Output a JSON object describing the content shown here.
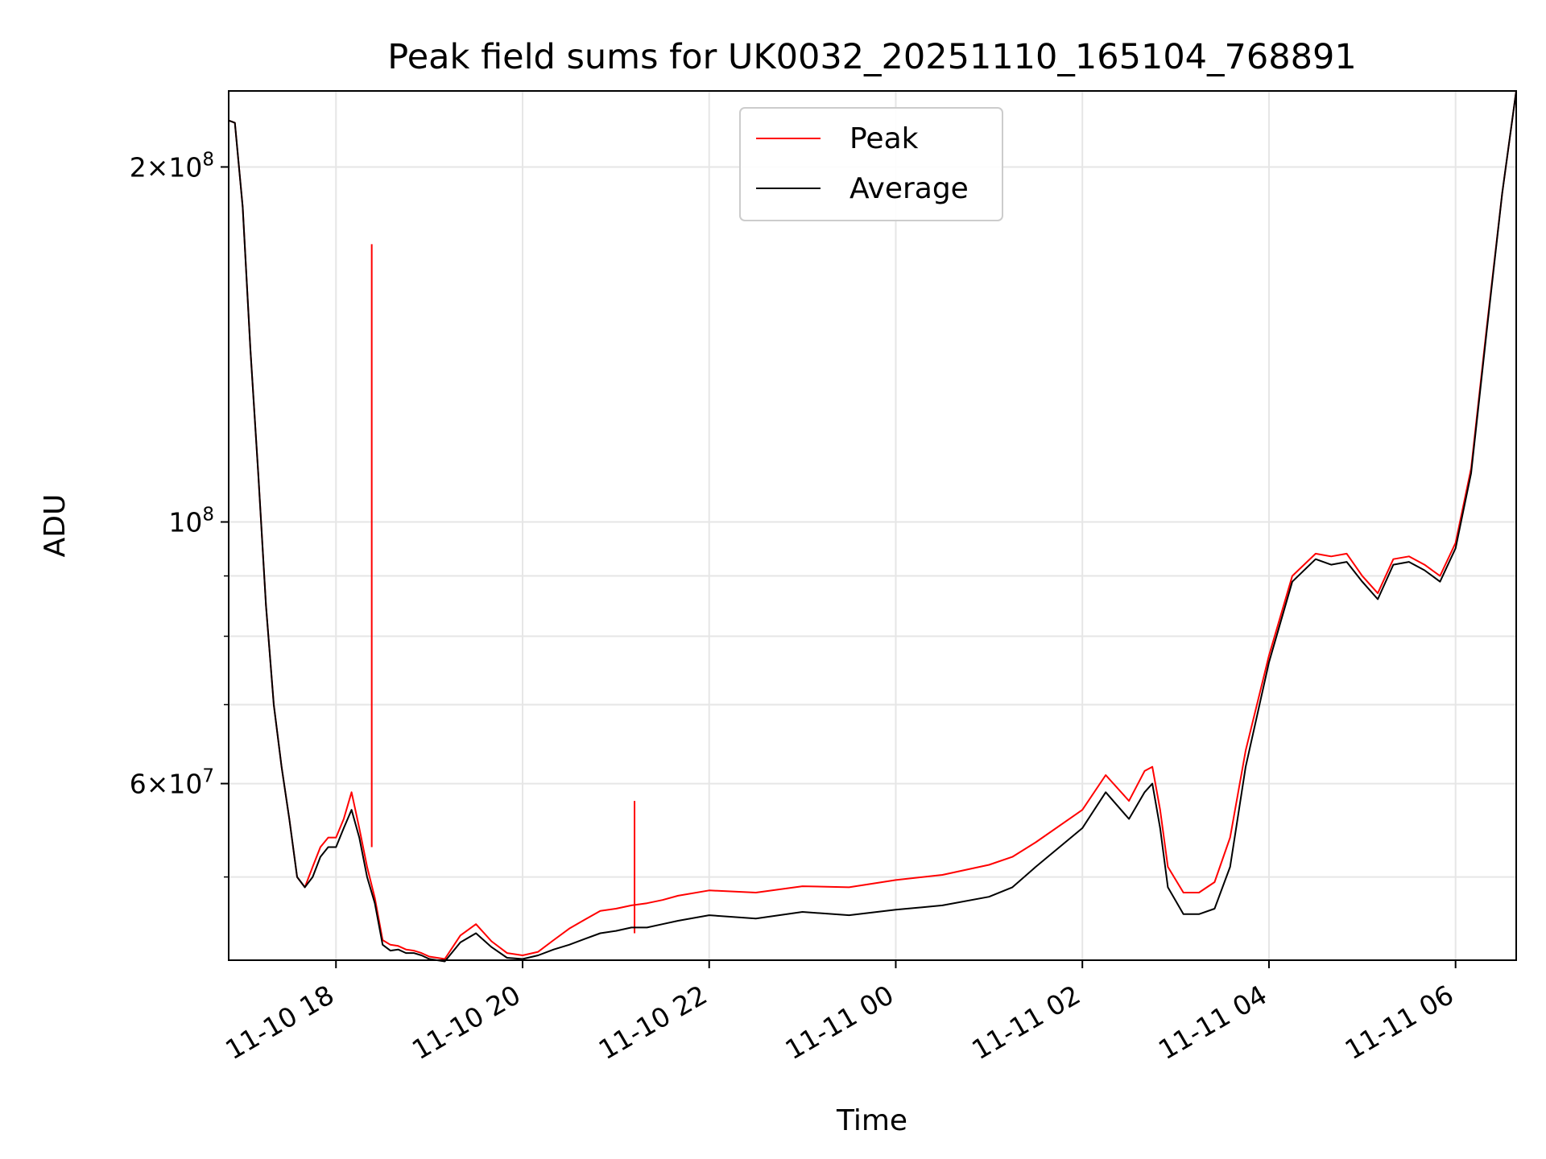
{
  "chart_data": {
    "type": "line",
    "title": "Peak field sums for UK0032_20251110_165104_768891",
    "xlabel": "Time",
    "ylabel": "ADU",
    "yscale": "log",
    "xlim": [
      "2025-11-10 16:51",
      "2025-11-11 06:39"
    ],
    "ylim": [
      42500000,
      232000000
    ],
    "grid": true,
    "legend_position": "top-center",
    "x_ticks": [
      {
        "x": "2025-11-10 18:00",
        "label": "11-10 18"
      },
      {
        "x": "2025-11-10 20:00",
        "label": "11-10 20"
      },
      {
        "x": "2025-11-10 22:00",
        "label": "11-10 22"
      },
      {
        "x": "2025-11-11 00:00",
        "label": "11-11 00"
      },
      {
        "x": "2025-11-11 02:00",
        "label": "11-11 02"
      },
      {
        "x": "2025-11-11 04:00",
        "label": "11-11 04"
      },
      {
        "x": "2025-11-11 06:00",
        "label": "11-11 06"
      }
    ],
    "y_major_ticks": [
      {
        "value": 60000000,
        "mantissa": "6×10",
        "exp": "7"
      },
      {
        "value": 100000000,
        "mantissa": "10",
        "exp": "8"
      },
      {
        "value": 200000000,
        "mantissa": "2×10",
        "exp": "8"
      }
    ],
    "y_minor_ticks": [
      50000000,
      70000000,
      80000000,
      90000000
    ],
    "series": [
      {
        "name": "Average",
        "color": "#000000",
        "x": [
          "2025-11-10 16:51",
          "2025-11-10 16:55",
          "2025-11-10 17:00",
          "2025-11-10 17:05",
          "2025-11-10 17:10",
          "2025-11-10 17:15",
          "2025-11-10 17:20",
          "2025-11-10 17:25",
          "2025-11-10 17:30",
          "2025-11-10 17:35",
          "2025-11-10 17:40",
          "2025-11-10 17:45",
          "2025-11-10 17:50",
          "2025-11-10 17:55",
          "2025-11-10 18:00",
          "2025-11-10 18:05",
          "2025-11-10 18:10",
          "2025-11-10 18:15",
          "2025-11-10 18:20",
          "2025-11-10 18:25",
          "2025-11-10 18:30",
          "2025-11-10 18:35",
          "2025-11-10 18:40",
          "2025-11-10 18:45",
          "2025-11-10 18:50",
          "2025-11-10 18:55",
          "2025-11-10 19:00",
          "2025-11-10 19:10",
          "2025-11-10 19:20",
          "2025-11-10 19:30",
          "2025-11-10 19:40",
          "2025-11-10 19:50",
          "2025-11-10 20:00",
          "2025-11-10 20:10",
          "2025-11-10 20:20",
          "2025-11-10 20:30",
          "2025-11-10 20:40",
          "2025-11-10 20:50",
          "2025-11-10 21:00",
          "2025-11-10 21:10",
          "2025-11-10 21:20",
          "2025-11-10 21:30",
          "2025-11-10 21:40",
          "2025-11-10 22:00",
          "2025-11-10 22:30",
          "2025-11-10 23:00",
          "2025-11-10 23:30",
          "2025-11-11 00:00",
          "2025-11-11 00:30",
          "2025-11-11 01:00",
          "2025-11-11 01:15",
          "2025-11-11 01:30",
          "2025-11-11 02:00",
          "2025-11-11 02:15",
          "2025-11-11 02:30",
          "2025-11-11 02:40",
          "2025-11-11 02:45",
          "2025-11-11 02:50",
          "2025-11-11 02:55",
          "2025-11-11 03:05",
          "2025-11-11 03:15",
          "2025-11-11 03:25",
          "2025-11-11 03:35",
          "2025-11-11 03:45",
          "2025-11-11 04:00",
          "2025-11-11 04:15",
          "2025-11-11 04:30",
          "2025-11-11 04:40",
          "2025-11-11 04:50",
          "2025-11-11 05:00",
          "2025-11-11 05:10",
          "2025-11-11 05:20",
          "2025-11-11 05:30",
          "2025-11-11 05:40",
          "2025-11-11 05:50",
          "2025-11-11 06:00",
          "2025-11-11 06:10",
          "2025-11-11 06:20",
          "2025-11-11 06:30",
          "2025-11-11 06:39"
        ],
        "values": [
          219000000,
          218000000,
          185000000,
          140000000,
          110000000,
          85000000,
          70000000,
          62000000,
          56000000,
          50000000,
          49000000,
          50000000,
          52000000,
          53000000,
          53000000,
          55000000,
          57000000,
          54000000,
          50000000,
          47500000,
          43800000,
          43300000,
          43400000,
          43100000,
          43100000,
          42900000,
          42600000,
          42400000,
          44000000,
          44800000,
          43600000,
          42700000,
          42600000,
          42900000,
          43400000,
          43800000,
          44300000,
          44800000,
          45000000,
          45300000,
          45300000,
          45600000,
          45900000,
          46400000,
          46100000,
          46700000,
          46400000,
          46900000,
          47300000,
          48100000,
          49000000,
          51000000,
          55000000,
          59000000,
          56000000,
          59000000,
          60000000,
          55000000,
          49000000,
          46500000,
          46500000,
          47000000,
          51000000,
          62000000,
          76000000,
          89000000,
          93000000,
          92000000,
          92500000,
          89000000,
          86000000,
          92000000,
          92500000,
          91000000,
          89000000,
          95000000,
          110000000,
          145000000,
          190000000,
          232000000
        ]
      },
      {
        "name": "Peak",
        "color": "#ff0000",
        "x": [
          "2025-11-10 16:51",
          "2025-11-10 16:55",
          "2025-11-10 17:00",
          "2025-11-10 17:05",
          "2025-11-10 17:10",
          "2025-11-10 17:15",
          "2025-11-10 17:20",
          "2025-11-10 17:25",
          "2025-11-10 17:30",
          "2025-11-10 17:35",
          "2025-11-10 17:40",
          "2025-11-10 17:45",
          "2025-11-10 17:50",
          "2025-11-10 17:55",
          "2025-11-10 18:00",
          "2025-11-10 18:05",
          "2025-11-10 18:10",
          "2025-11-10 18:15",
          "2025-11-10 18:20",
          "2025-11-10 18:25",
          "2025-11-10 18:30",
          "2025-11-10 18:35",
          "2025-11-10 18:40",
          "2025-11-10 18:45",
          "2025-11-10 18:50",
          "2025-11-10 18:55",
          "2025-11-10 19:00",
          "2025-11-10 19:10",
          "2025-11-10 19:20",
          "2025-11-10 19:30",
          "2025-11-10 19:40",
          "2025-11-10 19:50",
          "2025-11-10 20:00",
          "2025-11-10 20:10",
          "2025-11-10 20:20",
          "2025-11-10 20:30",
          "2025-11-10 20:40",
          "2025-11-10 20:50",
          "2025-11-10 21:00",
          "2025-11-10 21:10",
          "2025-11-10 21:20",
          "2025-11-10 21:30",
          "2025-11-10 21:40",
          "2025-11-10 22:00",
          "2025-11-10 22:30",
          "2025-11-10 23:00",
          "2025-11-10 23:30",
          "2025-11-11 00:00",
          "2025-11-11 00:30",
          "2025-11-11 01:00",
          "2025-11-11 01:15",
          "2025-11-11 01:30",
          "2025-11-11 02:00",
          "2025-11-11 02:15",
          "2025-11-11 02:30",
          "2025-11-11 02:40",
          "2025-11-11 02:45",
          "2025-11-11 02:50",
          "2025-11-11 02:55",
          "2025-11-11 03:05",
          "2025-11-11 03:15",
          "2025-11-11 03:25",
          "2025-11-11 03:35",
          "2025-11-11 03:45",
          "2025-11-11 04:00",
          "2025-11-11 04:15",
          "2025-11-11 04:30",
          "2025-11-11 04:40",
          "2025-11-11 04:50",
          "2025-11-11 05:00",
          "2025-11-11 05:10",
          "2025-11-11 05:20",
          "2025-11-11 05:30",
          "2025-11-11 05:40",
          "2025-11-11 05:50",
          "2025-11-11 06:00",
          "2025-11-11 06:10",
          "2025-11-11 06:20",
          "2025-11-11 06:30",
          "2025-11-11 06:39"
        ],
        "values": [
          219000000,
          218000000,
          185000000,
          140000000,
          110000000,
          85000000,
          70000000,
          62000000,
          56000000,
          50000000,
          49000000,
          51000000,
          53000000,
          54000000,
          54000000,
          56000000,
          59000000,
          55000000,
          51000000,
          48000000,
          44200000,
          43800000,
          43700000,
          43400000,
          43300000,
          43100000,
          42800000,
          42600000,
          44600000,
          45600000,
          44100000,
          43100000,
          42900000,
          43200000,
          44200000,
          45200000,
          46000000,
          46800000,
          47000000,
          47300000,
          47500000,
          47800000,
          48200000,
          48700000,
          48500000,
          49100000,
          49000000,
          49700000,
          50200000,
          51200000,
          52000000,
          53500000,
          57000000,
          61000000,
          58000000,
          61500000,
          62000000,
          57000000,
          51000000,
          48500000,
          48500000,
          49500000,
          54000000,
          64000000,
          77000000,
          90000000,
          94000000,
          93500000,
          94000000,
          90000000,
          87000000,
          93000000,
          93500000,
          92000000,
          90000000,
          96000000,
          111000000,
          146000000,
          190000000,
          232000000
        ],
        "spikes": [
          {
            "x": "2025-11-10 18:23",
            "value": 172000000
          },
          {
            "x": "2025-11-10 21:12",
            "value": 58000000
          }
        ]
      }
    ]
  }
}
